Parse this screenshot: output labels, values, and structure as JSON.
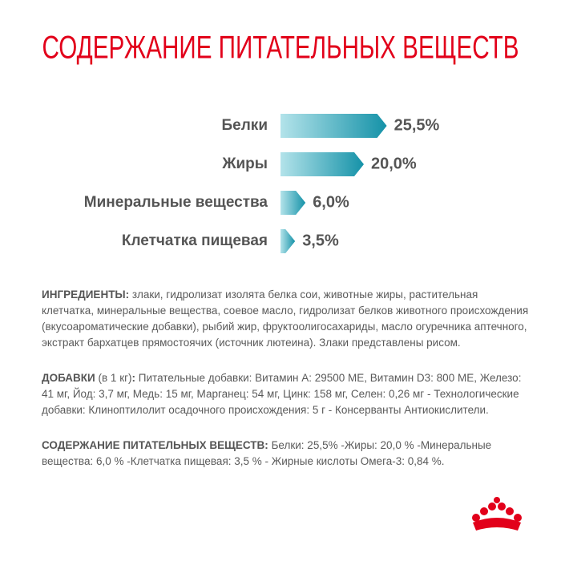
{
  "chart_data": {
    "type": "bar",
    "orientation": "horizontal",
    "title": "СОДЕРЖАНИЕ ПИТАТЕЛЬНЫХ ВЕЩЕСТВ",
    "categories": [
      "Белки",
      "Жиры",
      "Минеральные вещества",
      "Клетчатка пищевая"
    ],
    "values": [
      25.5,
      20.0,
      6.0,
      3.5
    ],
    "value_labels": [
      "25,5%",
      "20,0%",
      "6,0%",
      "3,5%"
    ],
    "gradient": [
      "#b3e3ea",
      "#1592a8"
    ]
  },
  "sections": [
    {
      "label": "ИНГРЕДИЕНТЫ:",
      "text": "злаки, гидролизат изолята белка сои, животные жиры, растительная клетчатка, минеральные вещества, соевое масло, гидролизат белков животного происхождения (вкусоароматические добавки), рыбий жир, фруктоолигосахариды, масло огуречника аптечного, экстракт бархатцев прямостоячих (источник лютеина). Злаки представлены рисом."
    },
    {
      "label": "ДОБАВКИ",
      "note": "(в 1 кг)",
      "colon": ":",
      "text": "Питательные добавки: Витамин А: 29500 МЕ, Витамин D3: 800 МЕ, Железо: 41 мг, Йод: 3,7 мг, Медь: 15 мг, Марганец: 54 мг, Цинк: 158 мг, Селен: 0,26 мг - Технологические добавки: Клиноптилолит осадочного происхождения: 5 г - Консерванты Антиокислители."
    },
    {
      "label": "СОДЕРЖАНИЕ ПИТАТЕЛЬНЫХ ВЕЩЕСТВ:",
      "text": "Белки: 25,5% -Жиры: 20,0 % -Минеральные вещества: 6,0 % -Клетчатка пищевая: 3,5 % - Жирные кислоты Омега-3: 0,84 %."
    }
  ]
}
